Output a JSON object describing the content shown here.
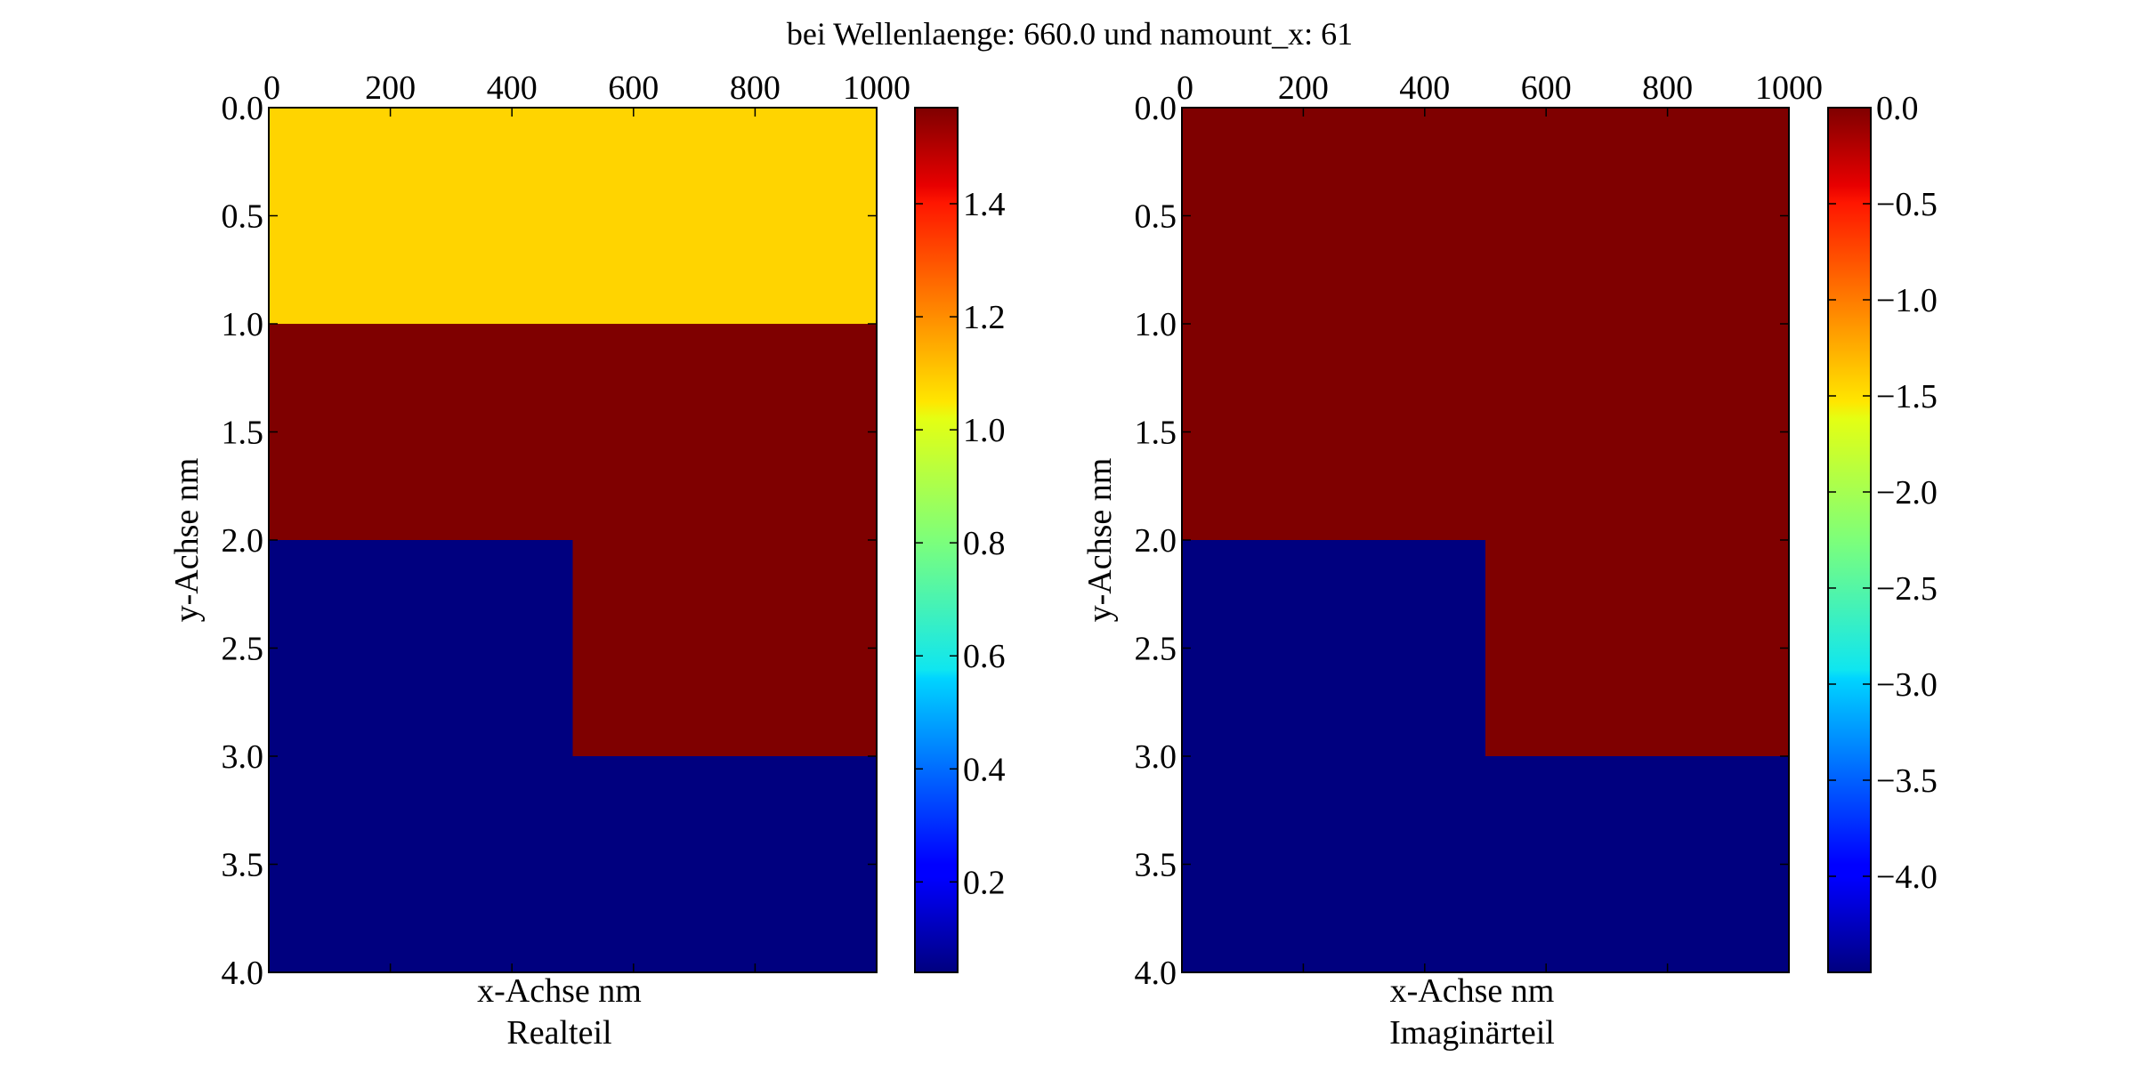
{
  "figure": {
    "title": "bei Wellenlaenge: 660.0 und namount_x: 61"
  },
  "chart_data": [
    {
      "type": "heatmap",
      "subtitle": "Realteil",
      "xlabel": "x-Achse nm",
      "ylabel": "y-Achse nm",
      "xlim": [
        0,
        1000
      ],
      "ylim": [
        0,
        4
      ],
      "x_ticks": [
        "0",
        "200",
        "400",
        "600",
        "800",
        "1000"
      ],
      "x_tick_values": [
        0,
        200,
        400,
        600,
        800,
        1000
      ],
      "y_ticks": [
        "0.0",
        "0.5",
        "1.0",
        "1.5",
        "2.0",
        "2.5",
        "3.0",
        "3.5",
        "4.0"
      ],
      "y_tick_values": [
        0,
        0.5,
        1,
        1.5,
        2,
        2.5,
        3,
        3.5,
        4
      ],
      "colormap": "jet",
      "vmin": 0.04,
      "vmax": 1.57,
      "colorbar_ticks": [
        "0.2",
        "0.4",
        "0.6",
        "0.8",
        "1.0",
        "1.2",
        "1.4"
      ],
      "colorbar_tick_values": [
        0.2,
        0.4,
        0.6,
        0.8,
        1.0,
        1.2,
        1.4
      ],
      "regions": [
        {
          "x": [
            0,
            1000
          ],
          "y": [
            0,
            1
          ],
          "value": 1.08
        },
        {
          "x": [
            0,
            1000
          ],
          "y": [
            1,
            2
          ],
          "value": 1.57
        },
        {
          "x": [
            0,
            500
          ],
          "y": [
            2,
            3
          ],
          "value": 0.04
        },
        {
          "x": [
            500,
            1000
          ],
          "y": [
            2,
            3
          ],
          "value": 1.57
        },
        {
          "x": [
            0,
            1000
          ],
          "y": [
            3,
            4
          ],
          "value": 0.04
        }
      ]
    },
    {
      "type": "heatmap",
      "subtitle": "Imaginärteil",
      "xlabel": "x-Achse nm",
      "ylabel": "y-Achse nm",
      "xlim": [
        0,
        1000
      ],
      "ylim": [
        0,
        4
      ],
      "x_ticks": [
        "0",
        "200",
        "400",
        "600",
        "800",
        "1000"
      ],
      "x_tick_values": [
        0,
        200,
        400,
        600,
        800,
        1000
      ],
      "y_ticks": [
        "0.0",
        "0.5",
        "1.0",
        "1.5",
        "2.0",
        "2.5",
        "3.0",
        "3.5",
        "4.0"
      ],
      "y_tick_values": [
        0,
        0.5,
        1,
        1.5,
        2,
        2.5,
        3,
        3.5,
        4
      ],
      "colormap": "jet",
      "vmin": -4.5,
      "vmax": 0.0,
      "colorbar_ticks": [
        "0.0",
        "−0.5",
        "−1.0",
        "−1.5",
        "−2.0",
        "−2.5",
        "−3.0",
        "−3.5",
        "−4.0"
      ],
      "colorbar_tick_values": [
        0,
        -0.5,
        -1.0,
        -1.5,
        -2.0,
        -2.5,
        -3.0,
        -3.5,
        -4.0
      ],
      "regions": [
        {
          "x": [
            0,
            1000
          ],
          "y": [
            0,
            2
          ],
          "value": 0.0
        },
        {
          "x": [
            0,
            500
          ],
          "y": [
            2,
            3
          ],
          "value": -4.5
        },
        {
          "x": [
            500,
            1000
          ],
          "y": [
            2,
            3
          ],
          "value": 0.0
        },
        {
          "x": [
            0,
            1000
          ],
          "y": [
            3,
            4
          ],
          "value": -4.5
        }
      ]
    }
  ]
}
